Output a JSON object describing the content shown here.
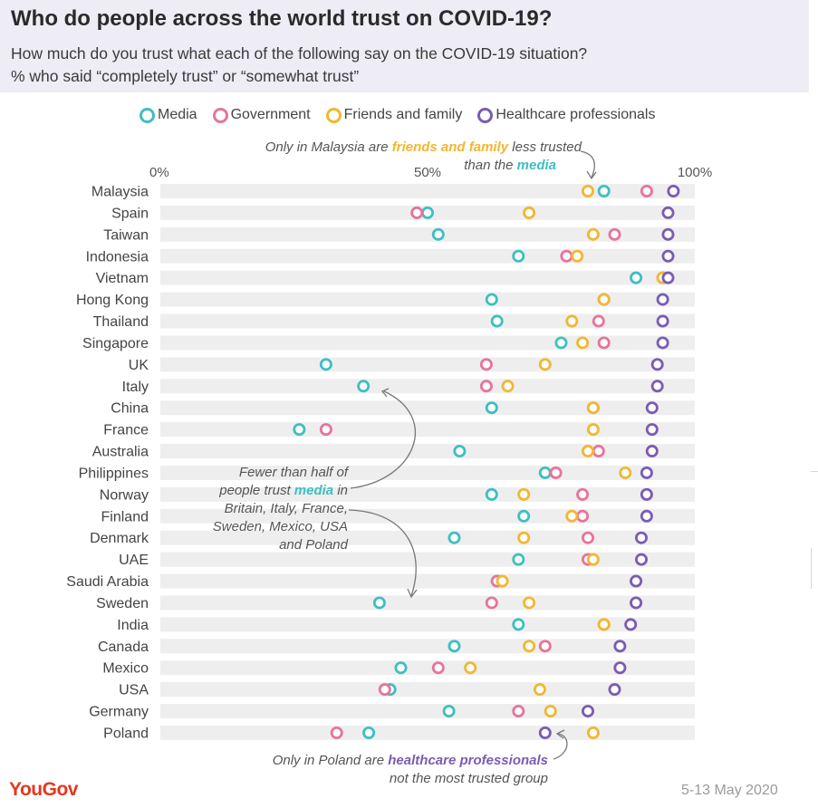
{
  "header": {
    "title": "Who do people across the world trust on COVID-19?",
    "subtitle_line1": "How much do you trust what each of the following say on the COVID-19 situation?",
    "subtitle_line2": "% who said “completely trust” or “somewhat trust”"
  },
  "colors": {
    "media": "#3ebfc0",
    "government": "#e8739b",
    "friends_family": "#f2b731",
    "healthcare": "#7a5cb3",
    "row_band": "#eeeeee"
  },
  "annotations": {
    "malaysia": {
      "line1_a": "Only in Malaysia are ",
      "line1_b": "friends and family",
      "line1_c": " less trusted",
      "line2_a": "than the ",
      "line2_b": "media"
    },
    "media_half": {
      "line1": "Fewer than half of",
      "line2_a": "people trust ",
      "line2_b": "media",
      "line2_c": " in",
      "line3": "Britain, Italy, France,",
      "line4": "Sweden, Mexico, USA",
      "line5": "and Poland"
    },
    "poland": {
      "line1_a": "Only in Poland are ",
      "line1_b": "healthcare professionals",
      "line2": "not the most trusted group"
    }
  },
  "footer": {
    "brand": "YouGov",
    "date": "5-13 May 2020"
  },
  "chart_data": {
    "type": "scatter",
    "title": "Who do people across the world trust on COVID-19?",
    "xlim": [
      0,
      100
    ],
    "tick_labels": [
      "0%",
      "50%",
      "100%"
    ],
    "legend": [
      "Media",
      "Government",
      "Friends and family",
      "Healthcare professionals"
    ],
    "legend_placement": "top",
    "grid": false,
    "categories": [
      "Malaysia",
      "Spain",
      "Taiwan",
      "Indonesia",
      "Vietnam",
      "Hong Kong",
      "Thailand",
      "Singapore",
      "UK",
      "Italy",
      "China",
      "France",
      "Australia",
      "Philippines",
      "Norway",
      "Finland",
      "Denmark",
      "UAE",
      "Saudi Arabia",
      "Sweden",
      "India",
      "Canada",
      "Mexico",
      "USA",
      "Germany",
      "Poland"
    ],
    "series": [
      {
        "name": "Media",
        "color": "#3ebfc0",
        "values": [
          83,
          50,
          52,
          67,
          89,
          62,
          63,
          75,
          31,
          38,
          62,
          26,
          56,
          72,
          62,
          68,
          55,
          67,
          63,
          41,
          67,
          55,
          45,
          43,
          54,
          39
        ]
      },
      {
        "name": "Government",
        "color": "#e8739b",
        "values": [
          91,
          48,
          85,
          76,
          94,
          83,
          82,
          83,
          61,
          61,
          81,
          31,
          82,
          74,
          79,
          79,
          80,
          80,
          63,
          62,
          83,
          72,
          52,
          42,
          67,
          33
        ]
      },
      {
        "name": "Friends and family",
        "color": "#f2b731",
        "values": [
          80,
          69,
          81,
          78,
          94,
          83,
          77,
          79,
          72,
          65,
          81,
          81,
          80,
          87,
          68,
          77,
          68,
          81,
          64,
          69,
          83,
          69,
          58,
          71,
          73,
          81
        ]
      },
      {
        "name": "Healthcare professionals",
        "color": "#7a5cb3",
        "values": [
          96,
          95,
          95,
          95,
          95,
          94,
          94,
          94,
          93,
          93,
          92,
          92,
          92,
          91,
          91,
          91,
          90,
          90,
          89,
          89,
          88,
          86,
          86,
          85,
          80,
          72
        ]
      }
    ]
  }
}
